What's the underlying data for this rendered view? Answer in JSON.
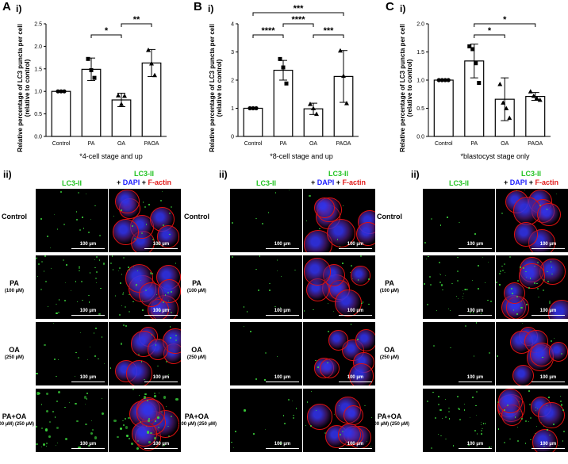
{
  "panels": [
    {
      "letter": "A",
      "sub1": "i)",
      "sub2": "ii)",
      "note": "*4-cell stage and up"
    },
    {
      "letter": "B",
      "sub1": "i)",
      "sub2": "ii)",
      "note": "*8-cell stage and up"
    },
    {
      "letter": "C",
      "sub1": "i)",
      "sub2": "ii)",
      "note": "*blastocyst stage only"
    }
  ],
  "chart_data": [
    {
      "type": "bar",
      "ylabel": "Relative percentage of LC3 puncta per cell\n(relative to control)",
      "categories": [
        "Control",
        "PA",
        "OA",
        "PAOA"
      ],
      "values": [
        1.0,
        1.49,
        0.81,
        1.63
      ],
      "errors": [
        0.01,
        0.25,
        0.15,
        0.3
      ],
      "points": [
        [
          1.0,
          1.0,
          1.0
        ],
        [
          1.72,
          1.47,
          1.3
        ],
        [
          0.91,
          0.72,
          0.9
        ],
        [
          1.92,
          1.62,
          1.36
        ]
      ],
      "ylim": [
        0,
        2.5
      ],
      "yticks": [
        "0.0",
        "0.5",
        "1.0",
        "1.5",
        "2.0",
        "2.5"
      ],
      "sig": [
        {
          "from": "PA",
          "to": "OA",
          "label": "*"
        },
        {
          "from": "OA",
          "to": "PAOA",
          "label": "**"
        }
      ]
    },
    {
      "type": "bar",
      "ylabel": "Relative percentage of LC3 puncta per cell\n(relative to control)",
      "categories": [
        "Control",
        "PA",
        "OA",
        "PAOA"
      ],
      "values": [
        1.0,
        2.35,
        0.98,
        2.13
      ],
      "errors": [
        0.01,
        0.35,
        0.2,
        0.92
      ],
      "points": [
        [
          1.0,
          1.0,
          1.0
        ],
        [
          2.75,
          2.45,
          1.88
        ],
        [
          1.15,
          1.0,
          0.8
        ],
        [
          3.05,
          2.15,
          1.18
        ]
      ],
      "ylim": [
        0,
        4
      ],
      "yticks": [
        "0",
        "1",
        "2",
        "3",
        "4"
      ],
      "sig": [
        {
          "from": "Control",
          "to": "PA",
          "label": "****"
        },
        {
          "from": "PA",
          "to": "OA",
          "label": "****"
        },
        {
          "from": "OA",
          "to": "PAOA",
          "label": "***"
        },
        {
          "from": "Control",
          "to": "PAOA",
          "label": "***"
        }
      ]
    },
    {
      "type": "bar",
      "ylabel": "Relative percentage of LC3 puncta per cell\n(relative to control)",
      "categories": [
        "Control",
        "PA",
        "OA",
        "PAOA"
      ],
      "values": [
        1.0,
        1.34,
        0.66,
        0.71
      ],
      "errors": [
        0.01,
        0.3,
        0.38,
        0.07
      ],
      "points": [
        [
          1.0,
          1.0,
          1.0,
          1.0
        ],
        [
          1.6,
          1.55,
          1.3,
          0.95
        ],
        [
          0.93,
          0.6,
          0.5,
          0.33
        ],
        [
          0.8,
          0.72,
          0.68,
          0.65
        ]
      ],
      "ylim": [
        0,
        2.0
      ],
      "yticks": [
        "0.0",
        "0.5",
        "1.0",
        "1.5",
        "2.0"
      ],
      "sig": [
        {
          "from": "PA",
          "to": "OA",
          "label": "*"
        },
        {
          "from": "PA",
          "to": "PAOA",
          "label": "*"
        }
      ]
    }
  ],
  "micrographs": {
    "col_header_1": "LC3-II",
    "col_header_2_a": "LC3-II",
    "col_header_2_b": "+ ",
    "col_header_2_c": "DAPI",
    "col_header_2_d": " + ",
    "col_header_2_e": "F-actin",
    "rows": [
      {
        "label": "Control",
        "dose": ""
      },
      {
        "label": "PA",
        "dose": "(100 µM)"
      },
      {
        "label": "OA",
        "dose": "(250 µM)"
      },
      {
        "label": "PA+OA",
        "dose": "(100 µM) (250 µM)"
      }
    ],
    "scale_bar": "100 µm"
  },
  "colors": {
    "green": "#22c322",
    "blue": "#1c1cff",
    "red": "#e21b1b"
  }
}
